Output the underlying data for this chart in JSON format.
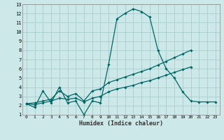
{
  "xlabel": "Humidex (Indice chaleur)",
  "bg_color": "#cce8e8",
  "grid_color": "#aacccc",
  "line_color": "#006666",
  "xlim": [
    -0.5,
    23.5
  ],
  "ylim": [
    1,
    13
  ],
  "xticks": [
    0,
    1,
    2,
    3,
    4,
    5,
    6,
    7,
    8,
    9,
    10,
    11,
    12,
    13,
    14,
    15,
    16,
    17,
    18,
    19,
    20,
    21,
    22,
    23
  ],
  "yticks": [
    1,
    2,
    3,
    4,
    5,
    6,
    7,
    8,
    9,
    10,
    11,
    12,
    13
  ],
  "series1_x": [
    0,
    1,
    2,
    3,
    4,
    5,
    6,
    7,
    8,
    9,
    10,
    11,
    12,
    13,
    14,
    15,
    16,
    17,
    18,
    19,
    20,
    21,
    22,
    23
  ],
  "series1_y": [
    2.2,
    1.8,
    3.6,
    2.3,
    4.0,
    2.3,
    2.5,
    1.0,
    2.5,
    2.3,
    6.5,
    11.4,
    12.0,
    12.5,
    12.2,
    11.6,
    8.0,
    6.0,
    5.0,
    3.5,
    2.5,
    2.4,
    2.4,
    2.4
  ],
  "series2_x": [
    0,
    1,
    2,
    3,
    4,
    5,
    6,
    7,
    8,
    9,
    10,
    11,
    12,
    13,
    14,
    15,
    16,
    17,
    18,
    19,
    20,
    21,
    22,
    23
  ],
  "series2_y": [
    2.2,
    2.3,
    2.5,
    2.7,
    3.6,
    3.0,
    3.3,
    2.5,
    3.6,
    3.8,
    4.5,
    4.8,
    5.1,
    5.4,
    5.7,
    6.0,
    6.4,
    6.8,
    7.2,
    7.6,
    8.0,
    2.4,
    2.4,
    2.4
  ],
  "series3_x": [
    0,
    1,
    2,
    3,
    4,
    5,
    6,
    7,
    8,
    9,
    10,
    11,
    12,
    13,
    14,
    15,
    16,
    17,
    18,
    19,
    20,
    21,
    22,
    23
  ],
  "series3_y": [
    2.2,
    2.1,
    2.3,
    2.5,
    2.8,
    2.7,
    2.8,
    2.4,
    2.8,
    3.0,
    3.5,
    3.8,
    4.0,
    4.2,
    4.5,
    4.7,
    5.0,
    5.3,
    5.6,
    5.9,
    6.2,
    2.4,
    2.4,
    2.4
  ]
}
